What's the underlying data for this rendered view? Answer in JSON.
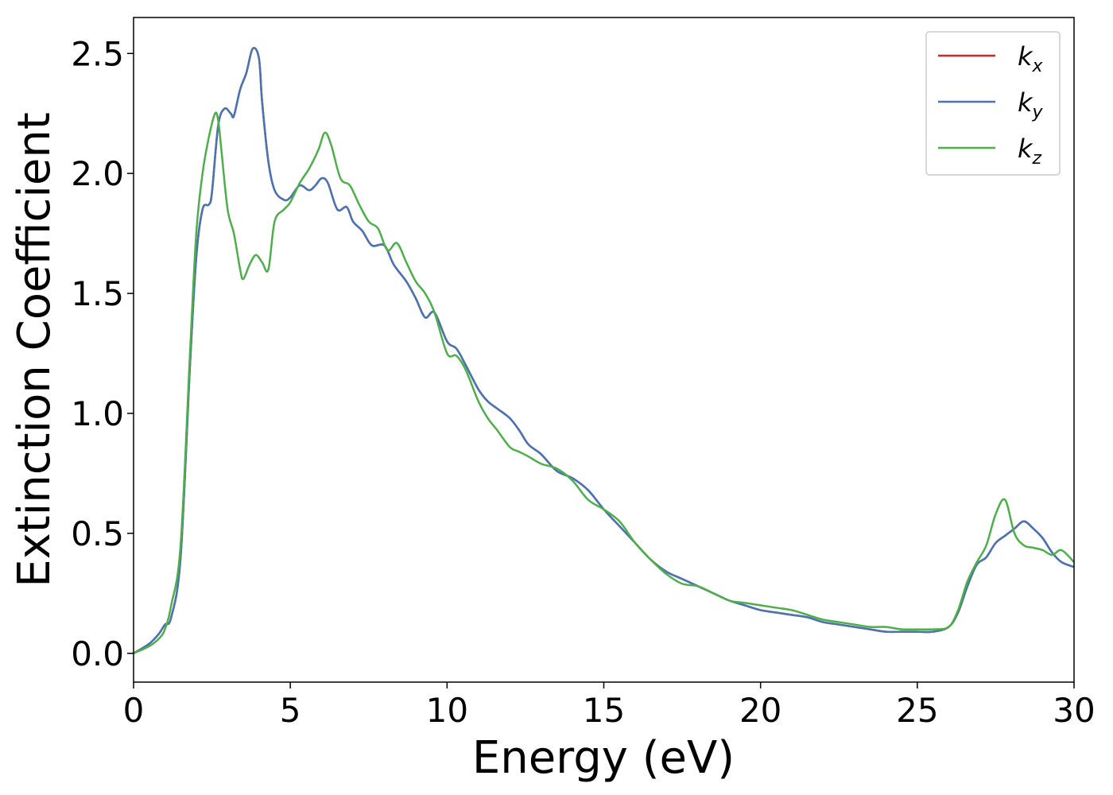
{
  "chart_data": {
    "type": "line",
    "title": "",
    "xlabel": "Energy (eV)",
    "ylabel": "Extinction Coefficient",
    "xlim": [
      0,
      30
    ],
    "ylim": [
      -0.12,
      2.65
    ],
    "xticks": [
      0,
      5,
      10,
      15,
      20,
      25,
      30
    ],
    "xtick_labels": [
      "0",
      "5",
      "10",
      "15",
      "20",
      "25",
      "30"
    ],
    "yticks": [
      0.0,
      0.5,
      1.0,
      1.5,
      2.0,
      2.5
    ],
    "ytick_labels": [
      "0.0",
      "0.5",
      "1.0",
      "1.5",
      "2.0",
      "2.5"
    ],
    "grid": false,
    "legend_position": "top-right",
    "series": [
      {
        "name": "k",
        "sub": "x",
        "color": "#d62728",
        "x": [
          0,
          0.5,
          0.8,
          1.0,
          1.2,
          1.5,
          1.8,
          2.0,
          2.2,
          2.4,
          2.5,
          2.7,
          2.9,
          3.1,
          3.2,
          3.4,
          3.6,
          3.8,
          4.0,
          4.1,
          4.3,
          4.5,
          4.8,
          5.0,
          5.3,
          5.6,
          5.8,
          6.0,
          6.2,
          6.5,
          6.8,
          7.0,
          7.3,
          7.6,
          8.0,
          8.3,
          8.7,
          9.0,
          9.3,
          9.6,
          10.0,
          10.3,
          10.6,
          11.0,
          11.3,
          11.6,
          12.0,
          12.3,
          12.6,
          13.0,
          13.5,
          14.0,
          14.5,
          15.0,
          15.5,
          16.0,
          16.5,
          17.0,
          17.5,
          18.0,
          18.5,
          19.0,
          19.5,
          20.0,
          20.5,
          21.0,
          21.5,
          22.0,
          22.5,
          23.0,
          23.5,
          24.0,
          24.5,
          25.0,
          25.5,
          26.0,
          26.3,
          26.6,
          26.9,
          27.2,
          27.5,
          27.8,
          28.1,
          28.4,
          28.7,
          29.0,
          29.3,
          29.6,
          30.0
        ],
        "y": [
          0.0,
          0.04,
          0.08,
          0.12,
          0.15,
          0.4,
          1.2,
          1.65,
          1.85,
          1.87,
          1.92,
          2.2,
          2.27,
          2.25,
          2.24,
          2.35,
          2.42,
          2.52,
          2.48,
          2.3,
          2.05,
          1.93,
          1.89,
          1.9,
          1.95,
          1.93,
          1.95,
          1.98,
          1.96,
          1.85,
          1.86,
          1.8,
          1.76,
          1.7,
          1.7,
          1.62,
          1.55,
          1.48,
          1.4,
          1.42,
          1.3,
          1.27,
          1.2,
          1.1,
          1.05,
          1.02,
          0.98,
          0.93,
          0.87,
          0.83,
          0.76,
          0.73,
          0.68,
          0.6,
          0.53,
          0.46,
          0.39,
          0.34,
          0.31,
          0.28,
          0.25,
          0.22,
          0.2,
          0.18,
          0.17,
          0.16,
          0.15,
          0.13,
          0.12,
          0.11,
          0.1,
          0.09,
          0.09,
          0.09,
          0.09,
          0.11,
          0.17,
          0.28,
          0.37,
          0.4,
          0.46,
          0.49,
          0.52,
          0.55,
          0.52,
          0.48,
          0.42,
          0.38,
          0.36
        ]
      },
      {
        "name": "k",
        "sub": "y",
        "color": "#4575b4",
        "x": [
          0,
          0.5,
          0.8,
          1.0,
          1.2,
          1.5,
          1.8,
          2.0,
          2.2,
          2.4,
          2.5,
          2.7,
          2.9,
          3.1,
          3.2,
          3.4,
          3.6,
          3.8,
          4.0,
          4.1,
          4.3,
          4.5,
          4.8,
          5.0,
          5.3,
          5.6,
          5.8,
          6.0,
          6.2,
          6.5,
          6.8,
          7.0,
          7.3,
          7.6,
          8.0,
          8.3,
          8.7,
          9.0,
          9.3,
          9.6,
          10.0,
          10.3,
          10.6,
          11.0,
          11.3,
          11.6,
          12.0,
          12.3,
          12.6,
          13.0,
          13.5,
          14.0,
          14.5,
          15.0,
          15.5,
          16.0,
          16.5,
          17.0,
          17.5,
          18.0,
          18.5,
          19.0,
          19.5,
          20.0,
          20.5,
          21.0,
          21.5,
          22.0,
          22.5,
          23.0,
          23.5,
          24.0,
          24.5,
          25.0,
          25.5,
          26.0,
          26.3,
          26.6,
          26.9,
          27.2,
          27.5,
          27.8,
          28.1,
          28.4,
          28.7,
          29.0,
          29.3,
          29.6,
          30.0
        ],
        "y": [
          0.0,
          0.04,
          0.08,
          0.12,
          0.15,
          0.4,
          1.2,
          1.65,
          1.85,
          1.87,
          1.92,
          2.2,
          2.27,
          2.25,
          2.24,
          2.35,
          2.42,
          2.52,
          2.48,
          2.3,
          2.05,
          1.93,
          1.89,
          1.9,
          1.95,
          1.93,
          1.95,
          1.98,
          1.96,
          1.85,
          1.86,
          1.8,
          1.76,
          1.7,
          1.7,
          1.62,
          1.55,
          1.48,
          1.4,
          1.42,
          1.3,
          1.27,
          1.2,
          1.1,
          1.05,
          1.02,
          0.98,
          0.93,
          0.87,
          0.83,
          0.76,
          0.73,
          0.68,
          0.6,
          0.53,
          0.46,
          0.39,
          0.34,
          0.31,
          0.28,
          0.25,
          0.22,
          0.2,
          0.18,
          0.17,
          0.16,
          0.15,
          0.13,
          0.12,
          0.11,
          0.1,
          0.09,
          0.09,
          0.09,
          0.09,
          0.11,
          0.17,
          0.28,
          0.37,
          0.4,
          0.46,
          0.49,
          0.52,
          0.55,
          0.52,
          0.48,
          0.42,
          0.38,
          0.36
        ]
      },
      {
        "name": "k",
        "sub": "z",
        "color": "#4daf4a",
        "x": [
          0,
          0.5,
          0.8,
          1.0,
          1.2,
          1.5,
          1.8,
          2.0,
          2.2,
          2.4,
          2.6,
          2.7,
          2.8,
          3.0,
          3.2,
          3.4,
          3.5,
          3.7,
          3.9,
          4.1,
          4.3,
          4.5,
          4.8,
          5.0,
          5.3,
          5.6,
          5.9,
          6.1,
          6.3,
          6.6,
          6.9,
          7.2,
          7.5,
          7.8,
          8.1,
          8.4,
          8.7,
          9.0,
          9.3,
          9.6,
          10.0,
          10.3,
          10.6,
          11.0,
          11.3,
          11.6,
          12.0,
          12.3,
          12.6,
          13.0,
          13.5,
          14.0,
          14.5,
          15.0,
          15.5,
          16.0,
          16.5,
          17.0,
          17.5,
          18.0,
          18.5,
          19.0,
          19.5,
          20.0,
          20.5,
          21.0,
          21.5,
          22.0,
          22.5,
          23.0,
          23.5,
          24.0,
          24.5,
          25.0,
          25.5,
          26.0,
          26.3,
          26.6,
          26.9,
          27.2,
          27.5,
          27.8,
          28.1,
          28.4,
          28.7,
          29.0,
          29.3,
          29.6,
          30.0
        ],
        "y": [
          0.0,
          0.03,
          0.06,
          0.1,
          0.2,
          0.45,
          1.25,
          1.75,
          2.0,
          2.15,
          2.25,
          2.22,
          2.1,
          1.85,
          1.75,
          1.6,
          1.56,
          1.62,
          1.66,
          1.63,
          1.6,
          1.8,
          1.85,
          1.88,
          1.96,
          2.02,
          2.1,
          2.17,
          2.12,
          1.98,
          1.95,
          1.87,
          1.8,
          1.77,
          1.68,
          1.71,
          1.63,
          1.55,
          1.5,
          1.42,
          1.25,
          1.24,
          1.18,
          1.05,
          0.98,
          0.93,
          0.86,
          0.84,
          0.82,
          0.79,
          0.77,
          0.72,
          0.64,
          0.6,
          0.55,
          0.46,
          0.39,
          0.33,
          0.29,
          0.28,
          0.25,
          0.22,
          0.21,
          0.2,
          0.19,
          0.18,
          0.16,
          0.14,
          0.13,
          0.12,
          0.11,
          0.11,
          0.1,
          0.1,
          0.1,
          0.11,
          0.18,
          0.3,
          0.38,
          0.45,
          0.58,
          0.64,
          0.5,
          0.45,
          0.44,
          0.43,
          0.41,
          0.43,
          0.38
        ]
      }
    ]
  }
}
